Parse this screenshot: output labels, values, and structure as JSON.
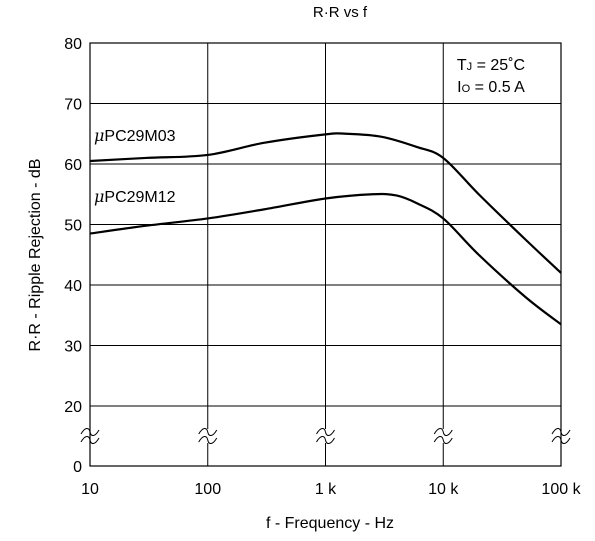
{
  "chart_data": {
    "type": "line",
    "title": "R·R vs f",
    "xlabel": "f - Frequency - Hz",
    "ylabel": "R·R - Ripple Rejection - dB",
    "x_scale": "log",
    "xlim": [
      10,
      100000
    ],
    "ylim": [
      0,
      80
    ],
    "y_axis_break": [
      0,
      20
    ],
    "grid": true,
    "x_ticks": [
      10,
      100,
      1000,
      10000,
      100000
    ],
    "x_tick_labels": [
      "10",
      "100",
      "1 k",
      "10 k",
      "100 k"
    ],
    "y_ticks": [
      0,
      20,
      30,
      40,
      50,
      60,
      70,
      80
    ],
    "y_tick_labels": [
      "0",
      "20",
      "30",
      "40",
      "50",
      "60",
      "70",
      "80"
    ],
    "annotations": {
      "line1_main": "T",
      "line1_sub": "J",
      "line1_rest": " = 25˚C",
      "line2_main": "I",
      "line2_sub": "O",
      "line2_rest": " = 0.5 A"
    },
    "series": [
      {
        "name": "μPC29M03",
        "label_prefix": "μ",
        "label_rest": "PC29M03",
        "x": [
          10,
          30,
          100,
          300,
          1000,
          1500,
          3000,
          6000,
          10000,
          20000,
          50000,
          100000
        ],
        "values": [
          60.5,
          61,
          61.5,
          63.5,
          64.9,
          65,
          64.5,
          62.8,
          61,
          55,
          47.5,
          42
        ]
      },
      {
        "name": "μPC29M12",
        "label_prefix": "μ",
        "label_rest": "PC29M12",
        "x": [
          10,
          30,
          100,
          300,
          1000,
          2500,
          4000,
          6000,
          10000,
          20000,
          50000,
          100000
        ],
        "values": [
          48.5,
          49.8,
          51,
          52.5,
          54.3,
          55,
          54.8,
          53.5,
          51,
          45,
          38,
          33.5
        ]
      }
    ]
  },
  "colors": {
    "axis": "#000000",
    "series": "#000000"
  }
}
